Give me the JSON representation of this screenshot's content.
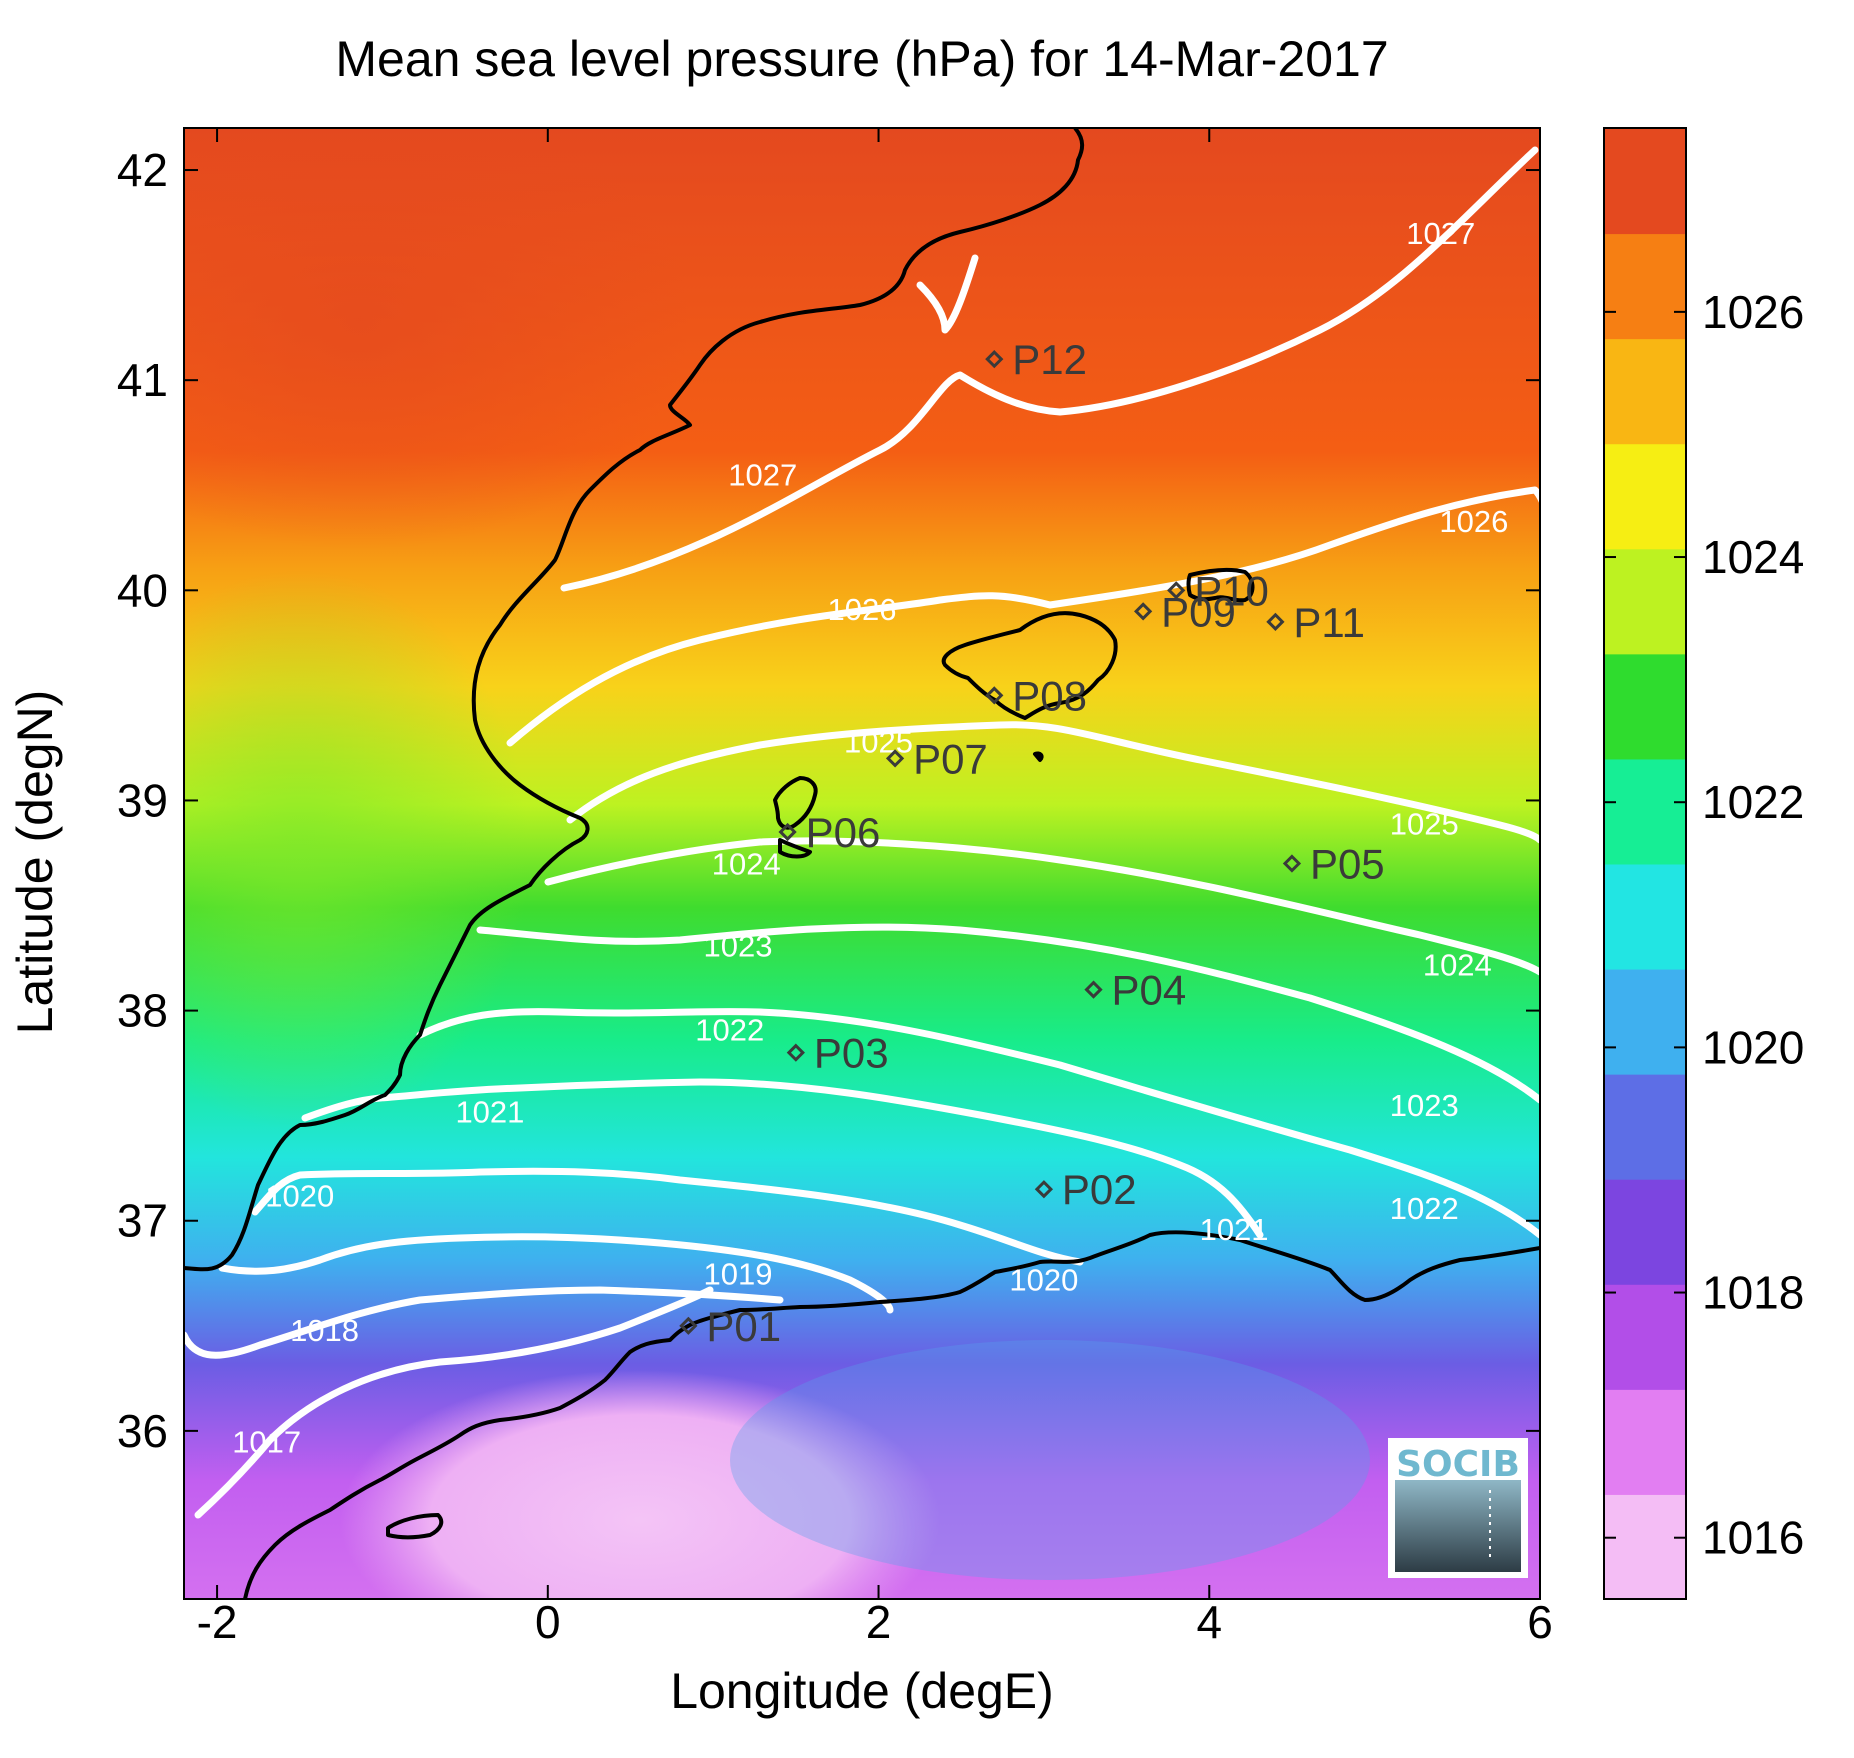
{
  "title": "Mean sea level pressure (hPa) for 14-Mar-2017",
  "xlabel": "Longitude (degE)",
  "ylabel": "Latitude (degN)",
  "xticks": [
    "-2",
    "0",
    "2",
    "4",
    "6"
  ],
  "yticks": [
    "36",
    "37",
    "38",
    "39",
    "40",
    "41",
    "42"
  ],
  "colorbar": {
    "ticks": [
      "1016",
      "1018",
      "1020",
      "1022",
      "1024",
      "1026"
    ],
    "range": [
      1015.5,
      1027.5
    ],
    "colors": [
      "#f4bdf5",
      "#e27ef2",
      "#b24ee8",
      "#7c45e0",
      "#5d6ee6",
      "#3fb0ef",
      "#22e5e3",
      "#16ee95",
      "#2fdc2e",
      "#bdf221",
      "#f6ee13",
      "#f9b613",
      "#f67f13",
      "#e4491f"
    ]
  },
  "logo": "SOCIB",
  "chart_data": {
    "type": "contour map",
    "variable": "Mean sea level pressure (hPa)",
    "date": "14-Mar-2017",
    "xlim": [
      -2.2,
      6
    ],
    "ylim": [
      35.2,
      42.2
    ],
    "contour_levels": [
      1017,
      1018,
      1019,
      1020,
      1021,
      1022,
      1023,
      1024,
      1025,
      1026,
      1027
    ],
    "contour_labels": [
      {
        "text": "1027",
        "lon": 1.3,
        "lat": 40.55
      },
      {
        "text": "1027",
        "lon": 5.4,
        "lat": 41.7
      },
      {
        "text": "1026",
        "lon": 1.9,
        "lat": 39.91
      },
      {
        "text": "1026",
        "lon": 5.6,
        "lat": 40.33
      },
      {
        "text": "1025",
        "lon": 2.0,
        "lat": 39.28
      },
      {
        "text": "1025",
        "lon": 5.3,
        "lat": 38.89
      },
      {
        "text": "1024",
        "lon": 1.2,
        "lat": 38.7
      },
      {
        "text": "1024",
        "lon": 5.5,
        "lat": 38.22
      },
      {
        "text": "1023",
        "lon": 1.15,
        "lat": 38.31
      },
      {
        "text": "1023",
        "lon": 5.3,
        "lat": 37.55
      },
      {
        "text": "1022",
        "lon": 1.1,
        "lat": 37.91
      },
      {
        "text": "1022",
        "lon": 5.3,
        "lat": 37.06
      },
      {
        "text": "1021",
        "lon": -0.35,
        "lat": 37.52
      },
      {
        "text": "1021",
        "lon": 4.15,
        "lat": 36.96
      },
      {
        "text": "1020",
        "lon": -1.5,
        "lat": 37.12
      },
      {
        "text": "1020",
        "lon": 3.0,
        "lat": 36.72
      },
      {
        "text": "1019",
        "lon": 1.15,
        "lat": 36.75
      },
      {
        "text": "1018",
        "lon": -1.35,
        "lat": 36.48
      },
      {
        "text": "1017",
        "lon": -1.7,
        "lat": 35.95
      }
    ],
    "stations": [
      {
        "name": "P01",
        "lon": 0.85,
        "lat": 36.5
      },
      {
        "name": "P02",
        "lon": 3.0,
        "lat": 37.15
      },
      {
        "name": "P03",
        "lon": 1.5,
        "lat": 37.8
      },
      {
        "name": "P04",
        "lon": 3.3,
        "lat": 38.1
      },
      {
        "name": "P05",
        "lon": 4.5,
        "lat": 38.7
      },
      {
        "name": "P06",
        "lon": 1.45,
        "lat": 38.85
      },
      {
        "name": "P07",
        "lon": 2.1,
        "lat": 39.2
      },
      {
        "name": "P08",
        "lon": 2.7,
        "lat": 39.5
      },
      {
        "name": "P09",
        "lon": 3.6,
        "lat": 39.9
      },
      {
        "name": "P10",
        "lon": 3.8,
        "lat": 40.0
      },
      {
        "name": "P11",
        "lon": 4.4,
        "lat": 39.85
      },
      {
        "name": "P12",
        "lon": 2.7,
        "lat": 41.1
      }
    ]
  }
}
